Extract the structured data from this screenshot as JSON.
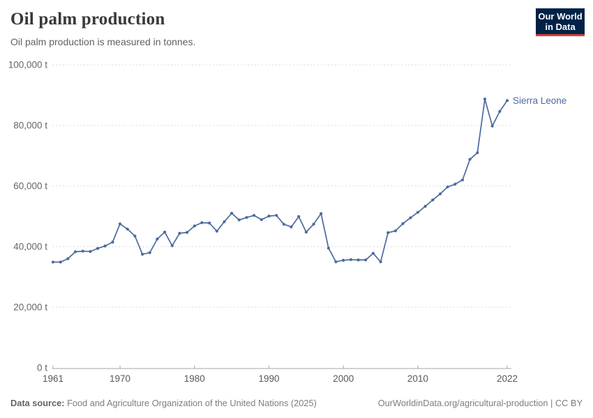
{
  "header": {
    "title": "Oil palm production",
    "subtitle": "Oil palm production is measured in tonnes."
  },
  "logo": {
    "line1": "Our World",
    "line2": "in Data"
  },
  "footer": {
    "datasource_label": "Data source:",
    "datasource_text": " Food and Agriculture Organization of the United Nations (2025)",
    "attribution": "OurWorldinData.org/agricultural-production | CC BY"
  },
  "colors": {
    "line": "#4C6A9D",
    "series_label": "#4C6A9D",
    "grid": "#DBDBDB",
    "axis": "#A5A5A5",
    "y_tick_text": "#666666",
    "x_tick_text": "#575757",
    "logo_bg": "#002147",
    "logo_accent": "#D63E32"
  },
  "chart_data": {
    "type": "line",
    "title": "Oil palm production",
    "subtitle": "Oil palm production is measured in tonnes.",
    "unit": "tonnes",
    "grid": true,
    "legend_position": "end-of-line",
    "ylim": [
      0,
      100000
    ],
    "xlim": [
      1961,
      2022
    ],
    "x": [
      1961,
      1962,
      1963,
      1964,
      1965,
      1966,
      1967,
      1968,
      1969,
      1970,
      1971,
      1972,
      1973,
      1974,
      1975,
      1976,
      1977,
      1978,
      1979,
      1980,
      1981,
      1982,
      1983,
      1984,
      1985,
      1986,
      1987,
      1988,
      1989,
      1990,
      1991,
      1992,
      1993,
      1994,
      1995,
      1996,
      1997,
      1998,
      1999,
      2000,
      2001,
      2002,
      2003,
      2004,
      2005,
      2006,
      2007,
      2008,
      2009,
      2010,
      2011,
      2012,
      2013,
      2014,
      2015,
      2016,
      2017,
      2018,
      2019,
      2020,
      2021,
      2022
    ],
    "series": [
      {
        "name": "Sierra Leone",
        "values": [
          34900,
          34900,
          36000,
          38300,
          38500,
          38400,
          39400,
          40200,
          41500,
          47500,
          45800,
          43500,
          37500,
          38000,
          42500,
          44800,
          40300,
          44400,
          44700,
          46800,
          47900,
          47800,
          45100,
          48200,
          51000,
          48800,
          49600,
          50300,
          48900,
          50100,
          50300,
          47400,
          46500,
          49900,
          44800,
          47400,
          50900,
          39500,
          35000,
          35500,
          35700,
          35600,
          35600,
          37800,
          35000,
          44600,
          45200,
          47600,
          49500,
          51300,
          53300,
          55400,
          57400,
          59700,
          60600,
          62000,
          68800,
          71000,
          88700,
          79800,
          84600,
          88200
        ]
      }
    ],
    "x_ticks": [
      {
        "year": 1961,
        "label": "1961"
      },
      {
        "year": 1970,
        "label": "1970"
      },
      {
        "year": 1980,
        "label": "1980"
      },
      {
        "year": 1990,
        "label": "1990"
      },
      {
        "year": 2000,
        "label": "2000"
      },
      {
        "year": 2010,
        "label": "2010"
      },
      {
        "year": 2022,
        "label": "2022"
      }
    ],
    "y_ticks": [
      {
        "value": 0,
        "label": "0 t"
      },
      {
        "value": 20000,
        "label": "20,000 t"
      },
      {
        "value": 40000,
        "label": "40,000 t"
      },
      {
        "value": 60000,
        "label": "60,000 t"
      },
      {
        "value": 80000,
        "label": "80,000 t"
      },
      {
        "value": 100000,
        "label": "100,000 t"
      }
    ]
  }
}
